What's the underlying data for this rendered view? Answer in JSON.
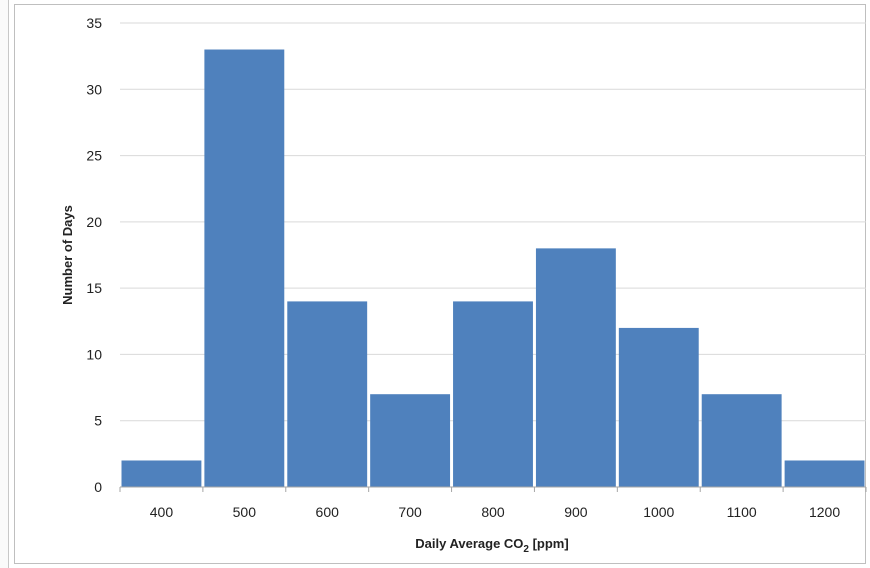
{
  "chart_data": {
    "type": "bar",
    "categories": [
      "400",
      "500",
      "600",
      "700",
      "800",
      "900",
      "1000",
      "1100",
      "1200"
    ],
    "values": [
      2,
      33,
      14,
      7,
      14,
      18,
      12,
      7,
      2
    ],
    "title": "",
    "xlabel": "Daily Average CO",
    "xlabel_subscript": "2",
    "xlabel_suffix": " [ppm]",
    "ylabel": "Number of Days",
    "ylim": [
      0,
      35
    ],
    "yticks": [
      "0",
      "5",
      "10",
      "15",
      "20",
      "25",
      "30",
      "35"
    ],
    "grid": true,
    "legend": "none",
    "bar_color": "#4f81bd",
    "grid_color": "#d9d9d9"
  }
}
